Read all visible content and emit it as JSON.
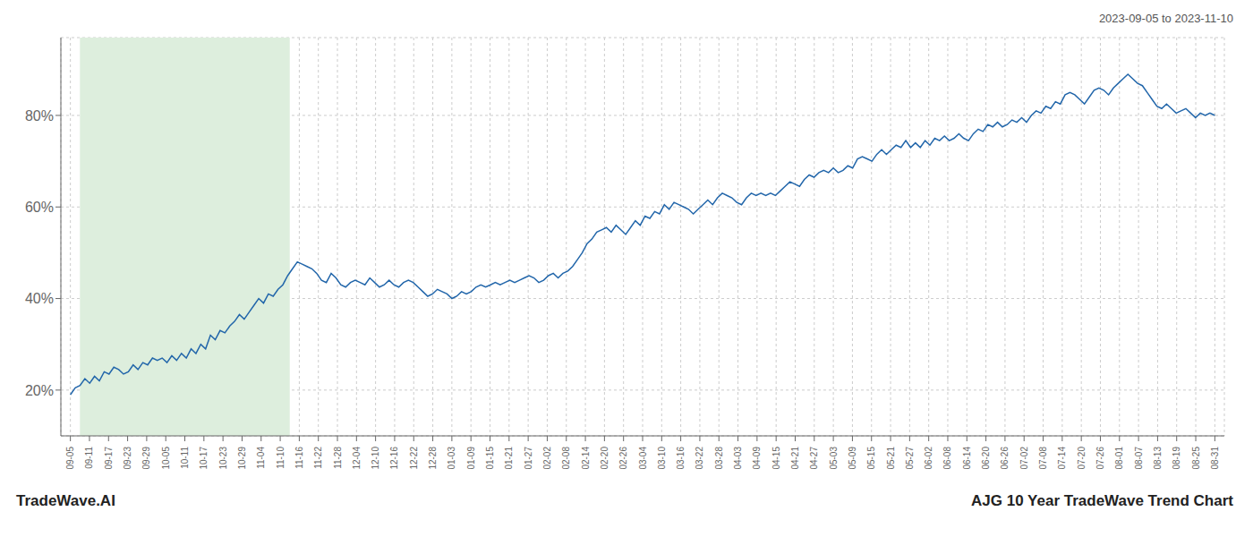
{
  "chart_data": {
    "type": "line",
    "title": "AJG 10 Year TradeWave Trend Chart",
    "subtitle": "2023-09-05 to 2023-11-10",
    "annotations": [
      "TradeWave.AI"
    ],
    "color": "#2266aa",
    "grid": true,
    "highlight": {
      "range": [
        1.975,
        45.425
      ],
      "color": "#ddeedd"
    },
    "xlim": [
      -1.975,
      238.975
    ],
    "xticks": [
      {
        "value": 0,
        "label": "09-05"
      },
      {
        "value": 3.95,
        "label": "09-11"
      },
      {
        "value": 7.9,
        "label": "09-17"
      },
      {
        "value": 11.85,
        "label": "09-23"
      },
      {
        "value": 15.8,
        "label": "09-29"
      },
      {
        "value": 19.75,
        "label": "10-05"
      },
      {
        "value": 23.7,
        "label": "10-11"
      },
      {
        "value": 27.65,
        "label": "10-17"
      },
      {
        "value": 31.6,
        "label": "10-23"
      },
      {
        "value": 35.55,
        "label": "10-29"
      },
      {
        "value": 39.5,
        "label": "11-04"
      },
      {
        "value": 43.45,
        "label": "11-10"
      },
      {
        "value": 47.4,
        "label": "11-16"
      },
      {
        "value": 51.35,
        "label": "11-22"
      },
      {
        "value": 55.3,
        "label": "11-28"
      },
      {
        "value": 59.25,
        "label": "12-04"
      },
      {
        "value": 63.2,
        "label": "12-10"
      },
      {
        "value": 67.15,
        "label": "12-16"
      },
      {
        "value": 71.1,
        "label": "12-22"
      },
      {
        "value": 75.05,
        "label": "12-28"
      },
      {
        "value": 79,
        "label": "01-03"
      },
      {
        "value": 82.95,
        "label": "01-09"
      },
      {
        "value": 86.9,
        "label": "01-15"
      },
      {
        "value": 90.85,
        "label": "01-21"
      },
      {
        "value": 94.8,
        "label": "01-27"
      },
      {
        "value": 98.75,
        "label": "02-02"
      },
      {
        "value": 102.7,
        "label": "02-08"
      },
      {
        "value": 106.65,
        "label": "02-14"
      },
      {
        "value": 110.6,
        "label": "02-20"
      },
      {
        "value": 114.55,
        "label": "02-26"
      },
      {
        "value": 118.5,
        "label": "03-04"
      },
      {
        "value": 122.45,
        "label": "03-10"
      },
      {
        "value": 126.4,
        "label": "03-16"
      },
      {
        "value": 130.35,
        "label": "03-22"
      },
      {
        "value": 134.3,
        "label": "03-28"
      },
      {
        "value": 138.25,
        "label": "04-03"
      },
      {
        "value": 142.2,
        "label": "04-09"
      },
      {
        "value": 146.15,
        "label": "04-15"
      },
      {
        "value": 150.1,
        "label": "04-21"
      },
      {
        "value": 154.05,
        "label": "04-27"
      },
      {
        "value": 158,
        "label": "05-03"
      },
      {
        "value": 161.95,
        "label": "05-09"
      },
      {
        "value": 165.9,
        "label": "05-15"
      },
      {
        "value": 169.85,
        "label": "05-21"
      },
      {
        "value": 173.8,
        "label": "05-27"
      },
      {
        "value": 177.75,
        "label": "06-02"
      },
      {
        "value": 181.7,
        "label": "06-08"
      },
      {
        "value": 185.65,
        "label": "06-14"
      },
      {
        "value": 189.6,
        "label": "06-20"
      },
      {
        "value": 193.55,
        "label": "06-26"
      },
      {
        "value": 197.5,
        "label": "07-02"
      },
      {
        "value": 201.45,
        "label": "07-08"
      },
      {
        "value": 205.4,
        "label": "07-14"
      },
      {
        "value": 209.35,
        "label": "07-20"
      },
      {
        "value": 213.3,
        "label": "07-26"
      },
      {
        "value": 217.25,
        "label": "08-01"
      },
      {
        "value": 221.2,
        "label": "08-07"
      },
      {
        "value": 225.15,
        "label": "08-13"
      },
      {
        "value": 229.1,
        "label": "08-19"
      },
      {
        "value": 233.05,
        "label": "08-25"
      },
      {
        "value": 237,
        "label": "08-31"
      }
    ],
    "ylim": [
      10,
      97
    ],
    "yticks": [
      {
        "value": 20,
        "label": "20%"
      },
      {
        "value": 40,
        "label": "40%"
      },
      {
        "value": 60,
        "label": "60%"
      },
      {
        "value": 80,
        "label": "80%"
      }
    ],
    "x": [
      0,
      1,
      2,
      3,
      4,
      5,
      6,
      7,
      8,
      9,
      10,
      11,
      12,
      13,
      14,
      15,
      16,
      17,
      18,
      19,
      20,
      21,
      22,
      23,
      24,
      25,
      26,
      27,
      28,
      29,
      30,
      31,
      32,
      33,
      34,
      35,
      36,
      37,
      38,
      39,
      40,
      41,
      42,
      43,
      44,
      45,
      46,
      47,
      48,
      49,
      50,
      51,
      52,
      53,
      54,
      55,
      56,
      57,
      58,
      59,
      60,
      61,
      62,
      63,
      64,
      65,
      66,
      67,
      68,
      69,
      70,
      71,
      72,
      73,
      74,
      75,
      76,
      77,
      78,
      79,
      80,
      81,
      82,
      83,
      84,
      85,
      86,
      87,
      88,
      89,
      90,
      91,
      92,
      93,
      94,
      95,
      96,
      97,
      98,
      99,
      100,
      101,
      102,
      103,
      104,
      105,
      106,
      107,
      108,
      109,
      110,
      111,
      112,
      113,
      114,
      115,
      116,
      117,
      118,
      119,
      120,
      121,
      122,
      123,
      124,
      125,
      126,
      127,
      128,
      129,
      130,
      131,
      132,
      133,
      134,
      135,
      136,
      137,
      138,
      139,
      140,
      141,
      142,
      143,
      144,
      145,
      146,
      147,
      148,
      149,
      150,
      151,
      152,
      153,
      154,
      155,
      156,
      157,
      158,
      159,
      160,
      161,
      162,
      163,
      164,
      165,
      166,
      167,
      168,
      169,
      170,
      171,
      172,
      173,
      174,
      175,
      176,
      177,
      178,
      179,
      180,
      181,
      182,
      183,
      184,
      185,
      186,
      187,
      188,
      189,
      190,
      191,
      192,
      193,
      194,
      195,
      196,
      197,
      198,
      199,
      200,
      201,
      202,
      203,
      204,
      205,
      206,
      207,
      208,
      209,
      210,
      211,
      212,
      213,
      214,
      215,
      216,
      217,
      218,
      219,
      220,
      221,
      222,
      223,
      224,
      225,
      226,
      227,
      228,
      229,
      230,
      231,
      232,
      233,
      234,
      235,
      236,
      237
    ],
    "values": [
      19.0,
      20.5,
      21.0,
      22.5,
      21.5,
      23.0,
      22.0,
      24.0,
      23.5,
      25.0,
      24.5,
      23.5,
      24.0,
      25.5,
      24.5,
      26.0,
      25.5,
      27.0,
      26.5,
      27.0,
      26.0,
      27.5,
      26.5,
      28.0,
      27.0,
      29.0,
      28.0,
      30.0,
      29.0,
      32.0,
      31.0,
      33.0,
      32.5,
      34.0,
      35.0,
      36.5,
      35.5,
      37.0,
      38.5,
      40.0,
      39.0,
      41.0,
      40.5,
      42.0,
      43.0,
      45.0,
      46.5,
      48.0,
      47.5,
      47.0,
      46.5,
      45.5,
      44.0,
      43.5,
      45.5,
      44.5,
      43.0,
      42.5,
      43.5,
      44.0,
      43.5,
      43.0,
      44.5,
      43.5,
      42.5,
      43.0,
      44.0,
      43.0,
      42.5,
      43.5,
      44.0,
      43.5,
      42.5,
      41.5,
      40.5,
      41.0,
      42.0,
      41.5,
      41.0,
      40.0,
      40.5,
      41.5,
      41.0,
      41.5,
      42.5,
      43.0,
      42.5,
      43.0,
      43.5,
      43.0,
      43.5,
      44.0,
      43.5,
      44.0,
      44.5,
      45.0,
      44.5,
      43.5,
      44.0,
      45.0,
      45.5,
      44.5,
      45.5,
      46.0,
      47.0,
      48.5,
      50.0,
      52.0,
      53.0,
      54.5,
      55.0,
      55.5,
      54.5,
      56.0,
      55.0,
      54.0,
      55.5,
      57.0,
      56.0,
      58.0,
      57.5,
      59.0,
      58.5,
      60.5,
      59.5,
      61.0,
      60.5,
      60.0,
      59.5,
      58.5,
      59.5,
      60.5,
      61.5,
      60.5,
      62.0,
      63.0,
      62.5,
      62.0,
      61.0,
      60.5,
      62.0,
      63.0,
      62.5,
      63.0,
      62.5,
      63.0,
      62.5,
      63.5,
      64.5,
      65.5,
      65.0,
      64.5,
      66.0,
      67.0,
      66.5,
      67.5,
      68.0,
      67.5,
      68.5,
      67.5,
      68.0,
      69.0,
      68.5,
      70.5,
      71.0,
      70.5,
      70.0,
      71.5,
      72.5,
      71.5,
      72.5,
      73.5,
      73.0,
      74.5,
      73.0,
      74.0,
      73.0,
      74.5,
      73.5,
      75.0,
      74.5,
      75.5,
      74.5,
      75.0,
      76.0,
      75.0,
      74.5,
      76.0,
      77.0,
      76.5,
      78.0,
      77.5,
      78.5,
      77.5,
      78.0,
      79.0,
      78.5,
      79.5,
      78.5,
      80.0,
      81.0,
      80.5,
      82.0,
      81.5,
      83.0,
      82.5,
      84.5,
      85.0,
      84.5,
      83.5,
      82.5,
      84.0,
      85.5,
      86.0,
      85.5,
      84.5,
      86.0,
      87.0,
      88.0,
      89.0,
      88.0,
      87.0,
      86.5,
      85.0,
      83.5,
      82.0,
      81.5,
      82.5,
      81.5,
      80.5,
      81.0,
      81.5,
      80.5,
      79.5,
      80.5,
      80.0,
      80.5,
      80.0
    ]
  }
}
